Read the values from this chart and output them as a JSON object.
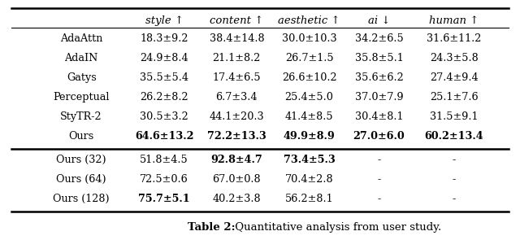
{
  "header": [
    "",
    "style ↑",
    "content ↑",
    "aesthetic ↑",
    "ai ↓",
    "human ↑"
  ],
  "rows": [
    {
      "method": "AdaAttn",
      "style": "18.3±9.2",
      "content": "38.4±14.8",
      "aesthetic": "30.0±10.3",
      "ai": "34.2±6.5",
      "human": "31.6±11.2",
      "bold": []
    },
    {
      "method": "AdaIN",
      "style": "24.9±8.4",
      "content": "21.1±8.2",
      "aesthetic": "26.7±1.5",
      "ai": "35.8±5.1",
      "human": "24.3±5.8",
      "bold": []
    },
    {
      "method": "Gatys",
      "style": "35.5±5.4",
      "content": "17.4±6.5",
      "aesthetic": "26.6±10.2",
      "ai": "35.6±6.2",
      "human": "27.4±9.4",
      "bold": []
    },
    {
      "method": "Perceptual",
      "style": "26.2±8.2",
      "content": "6.7±3.4",
      "aesthetic": "25.4±5.0",
      "ai": "37.0±7.9",
      "human": "25.1±7.6",
      "bold": []
    },
    {
      "method": "StyTR-2",
      "style": "30.5±3.2",
      "content": "44.1±20.3",
      "aesthetic": "41.4±8.5",
      "ai": "30.4±8.1",
      "human": "31.5±9.1",
      "bold": []
    },
    {
      "method": "Ours",
      "style": "64.6±13.2",
      "content": "72.2±13.3",
      "aesthetic": "49.9±8.9",
      "ai": "27.0±6.0",
      "human": "60.2±13.4",
      "bold": [
        "style",
        "content",
        "aesthetic",
        "ai",
        "human"
      ]
    }
  ],
  "rows2": [
    {
      "method": "Ours (32)",
      "style": "51.8±4.5",
      "content": "92.8±4.7",
      "aesthetic": "73.4±5.3",
      "ai": "-",
      "human": "-",
      "bold": [
        "content",
        "aesthetic"
      ]
    },
    {
      "method": "Ours (64)",
      "style": "72.5±0.6",
      "content": "67.0±0.8",
      "aesthetic": "70.4±2.8",
      "ai": "-",
      "human": "-",
      "bold": []
    },
    {
      "method": "Ours (128)",
      "style": "75.7±5.1",
      "content": "40.2±3.8",
      "aesthetic": "56.2±8.1",
      "ai": "-",
      "human": "-",
      "bold": [
        "style"
      ]
    }
  ],
  "caption": "Table 2: Quantitative analysis from user study.",
  "bg_color": "#ffffff"
}
